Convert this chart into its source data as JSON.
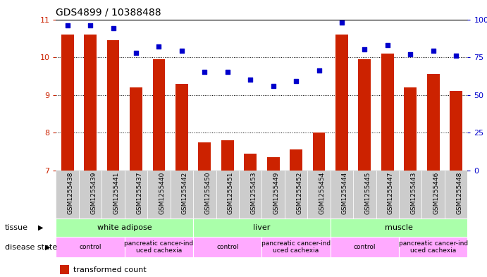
{
  "title": "GDS4899 / 10388488",
  "samples": [
    "GSM1255438",
    "GSM1255439",
    "GSM1255441",
    "GSM1255437",
    "GSM1255440",
    "GSM1255442",
    "GSM1255450",
    "GSM1255451",
    "GSM1255453",
    "GSM1255449",
    "GSM1255452",
    "GSM1255454",
    "GSM1255444",
    "GSM1255445",
    "GSM1255447",
    "GSM1255443",
    "GSM1255446",
    "GSM1255448"
  ],
  "transformed_count": [
    10.6,
    10.6,
    10.45,
    9.2,
    9.95,
    9.3,
    7.75,
    7.8,
    7.45,
    7.35,
    7.55,
    8.0,
    10.6,
    9.95,
    10.1,
    9.2,
    9.55,
    9.1
  ],
  "percentile_rank": [
    96,
    96,
    94,
    78,
    82,
    79,
    65,
    65,
    60,
    56,
    59,
    66,
    98,
    80,
    83,
    77,
    79,
    76
  ],
  "ylim_left": [
    7,
    11
  ],
  "ylim_right": [
    0,
    100
  ],
  "yticks_left": [
    7,
    8,
    9,
    10,
    11
  ],
  "yticks_right": [
    0,
    25,
    50,
    75,
    100
  ],
  "bar_color": "#cc2200",
  "dot_color": "#0000cc",
  "tissue_labels": [
    "white adipose",
    "liver",
    "muscle"
  ],
  "tissue_starts": [
    0,
    6,
    12
  ],
  "tissue_ends": [
    5,
    11,
    17
  ],
  "tissue_color": "#aaffaa",
  "disease_labels": [
    "control",
    "pancreatic cancer-ind\nuced cachexia",
    "control",
    "pancreatic cancer-ind\nuced cachexia",
    "control",
    "pancreatic cancer-ind\nuced cachexia"
  ],
  "disease_starts": [
    0,
    3,
    6,
    9,
    12,
    15
  ],
  "disease_ends": [
    2,
    5,
    8,
    11,
    14,
    17
  ],
  "disease_color": "#ffaaff",
  "tick_color_left": "#cc2200",
  "tick_color_right": "#0000cc",
  "bg_color": "#ffffff",
  "grid_color": "#000000",
  "bar_width": 0.55,
  "xtick_bg_color": "#cccccc"
}
